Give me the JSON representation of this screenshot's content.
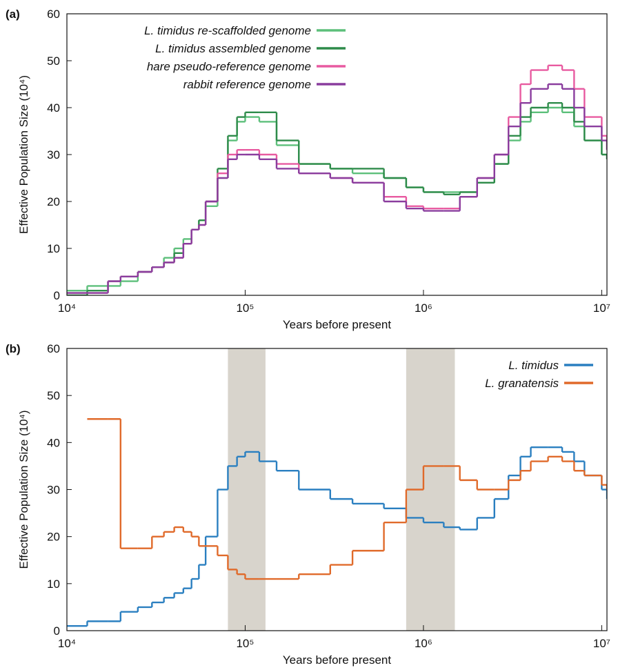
{
  "chart_data": [
    {
      "type": "step",
      "panel_label": "(a)",
      "xlabel": "Years before present",
      "ylabel": "Effective Population Size (10⁴)",
      "log_x": true,
      "xlim": [
        10000,
        10700000
      ],
      "ylim": [
        0,
        60
      ],
      "xticks": [
        {
          "value": 10000,
          "label": "10⁴"
        },
        {
          "value": 100000,
          "label": "10⁵"
        },
        {
          "value": 1000000,
          "label": "10⁶"
        },
        {
          "value": 10000000,
          "label": "10⁷"
        }
      ],
      "yticks": [
        0,
        10,
        20,
        30,
        40,
        50,
        60
      ],
      "legend_position": "upper left",
      "x": [
        10000,
        13000,
        17000,
        20000,
        25000,
        30000,
        35000,
        40000,
        45000,
        50000,
        55000,
        60000,
        70000,
        80000,
        90000,
        100000,
        120000,
        150000,
        200000,
        300000,
        400000,
        600000,
        800000,
        1000000,
        1300000,
        1600000,
        2000000,
        2500000,
        3000000,
        3500000,
        4000000,
        5000000,
        6000000,
        7000000,
        8000000,
        10000000,
        10700000
      ],
      "series": [
        {
          "name": "L. timidus re-scaffolded genome",
          "color": "#5cbf7a",
          "values": [
            1,
            2,
            2,
            3,
            5,
            6,
            8,
            10,
            12,
            14,
            16,
            19,
            25,
            33,
            37,
            38,
            37,
            32,
            28,
            27,
            26,
            25,
            23,
            22,
            22,
            22,
            24,
            28,
            33,
            37,
            39,
            40,
            39,
            36,
            33,
            30,
            29
          ]
        },
        {
          "name": "L. timidus assembled genome",
          "color": "#2e8b4a",
          "values": [
            0,
            1,
            3,
            4,
            5,
            6,
            7,
            9,
            11,
            14,
            16,
            20,
            27,
            34,
            38,
            39,
            39,
            33,
            28,
            27,
            27,
            25,
            23,
            22,
            21.5,
            22,
            24,
            28,
            34,
            38,
            40,
            41,
            40,
            37,
            33,
            30,
            29
          ]
        },
        {
          "name": "hare pseudo-reference genome",
          "color": "#e85aa0",
          "values": [
            0.5,
            0.5,
            3,
            4,
            5,
            6,
            7,
            8,
            11,
            14,
            15,
            20,
            26,
            30,
            31,
            31,
            30,
            28,
            26,
            25,
            24,
            21,
            19,
            18.5,
            18.5,
            21,
            25,
            30,
            38,
            45,
            48,
            49,
            48,
            44,
            38,
            34,
            31
          ]
        },
        {
          "name": "rabbit reference genome",
          "color": "#8a3d9e",
          "values": [
            0.5,
            0.5,
            3,
            4,
            5,
            6,
            7,
            8,
            11,
            14,
            15,
            20,
            25,
            29,
            30,
            30,
            29,
            27,
            26,
            25,
            24,
            20,
            18.5,
            18,
            18,
            21,
            25,
            30,
            36,
            41,
            44,
            45,
            44,
            40,
            36,
            33,
            31
          ]
        }
      ]
    },
    {
      "type": "step",
      "panel_label": "(b)",
      "xlabel": "Years before present",
      "ylabel": "Effective Population Size (10⁴)",
      "log_x": true,
      "xlim": [
        10000,
        10700000
      ],
      "ylim": [
        0,
        60
      ],
      "xticks": [
        {
          "value": 10000,
          "label": "10⁴"
        },
        {
          "value": 100000,
          "label": "10⁵"
        },
        {
          "value": 1000000,
          "label": "10⁶"
        },
        {
          "value": 10000000,
          "label": "10⁷"
        }
      ],
      "yticks": [
        0,
        10,
        20,
        30,
        40,
        50,
        60
      ],
      "legend_position": "upper right",
      "shaded_ranges": [
        [
          80000,
          130000
        ],
        [
          800000,
          1500000
        ]
      ],
      "shade_color": "#d8d4cc",
      "x": [
        10000,
        13000,
        17000,
        20000,
        25000,
        30000,
        35000,
        40000,
        45000,
        50000,
        55000,
        60000,
        70000,
        80000,
        90000,
        100000,
        120000,
        150000,
        200000,
        300000,
        400000,
        600000,
        800000,
        1000000,
        1300000,
        1600000,
        2000000,
        2500000,
        3000000,
        3500000,
        4000000,
        5000000,
        6000000,
        7000000,
        8000000,
        10000000,
        10700000
      ],
      "series": [
        {
          "name": "L. timidus",
          "color": "#2a7fc0",
          "values": [
            1,
            2,
            2,
            4,
            5,
            6,
            7,
            8,
            9,
            11,
            14,
            20,
            30,
            35,
            37,
            38,
            36,
            34,
            30,
            28,
            27,
            26,
            24,
            23,
            22,
            21.5,
            24,
            28,
            33,
            37,
            39,
            39,
            38,
            36,
            33,
            30,
            28
          ]
        },
        {
          "name": "L. granatensis",
          "color": "#e06a2a",
          "values": [
            null,
            45,
            45,
            17.5,
            17.5,
            20,
            21,
            22,
            21,
            20,
            18,
            18,
            16,
            13,
            12,
            11,
            11,
            11,
            12,
            14,
            17,
            23,
            30,
            35,
            35,
            32,
            30,
            30,
            32,
            34,
            36,
            37,
            36,
            34,
            33,
            31,
            30
          ]
        }
      ]
    }
  ]
}
